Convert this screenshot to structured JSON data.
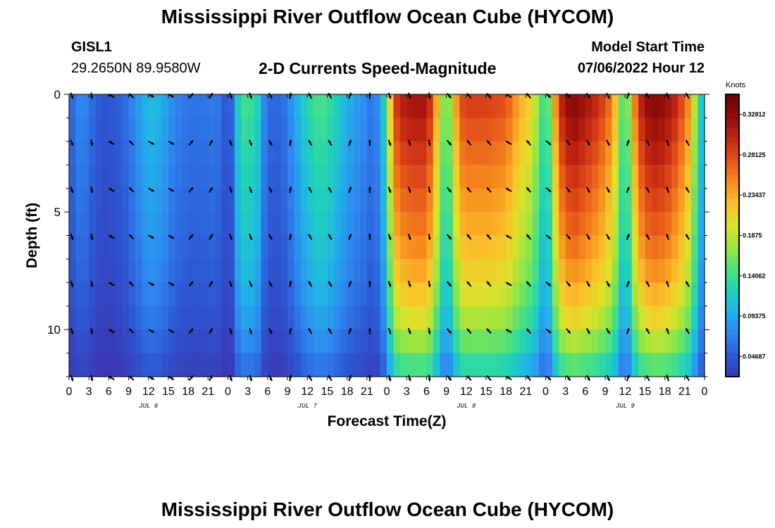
{
  "header": {
    "title": "Mississippi River Outflow Ocean Cube (HYCOM)",
    "station_id": "GISL1",
    "station_coords": "29.2650N  89.9580W",
    "subtitle": "2-D Currents Speed-Magnitude",
    "model_start_label": "Model Start Time",
    "model_start_value": "07/06/2022 Hour 12"
  },
  "footer": {
    "title": "Mississippi River Outflow Ocean Cube (HYCOM)"
  },
  "chart_data": {
    "type": "heatmap",
    "xlabel": "Forecast Time(Z)",
    "ylabel": "Depth (ft)",
    "x_hours": [
      0,
      96
    ],
    "x_tick_labels": [
      "0",
      "3",
      "6",
      "9",
      "12",
      "15",
      "18",
      "21",
      "0",
      "3",
      "6",
      "9",
      "12",
      "15",
      "18",
      "21",
      "0",
      "3",
      "6",
      "9",
      "12",
      "15",
      "18",
      "21",
      "0",
      "3",
      "6",
      "9",
      "12",
      "15",
      "18",
      "21",
      "0"
    ],
    "day_labels": [
      {
        "label": "JUL 6",
        "hour": 12
      },
      {
        "label": "JUL 7",
        "hour": 36
      },
      {
        "label": "JUL 8",
        "hour": 60
      },
      {
        "label": "JUL 9",
        "hour": 84
      }
    ],
    "y_depth_ft": [
      0,
      12
    ],
    "y_tick_labels": [
      {
        "depth": 0,
        "label": "0"
      },
      {
        "depth": 5,
        "label": "5"
      },
      {
        "depth": 10,
        "label": "10"
      }
    ],
    "colorbar": {
      "unit": "Knots",
      "min": 0.0234,
      "max": 0.3516,
      "tick_values": [
        0.04687,
        0.09375,
        0.14062,
        0.1875,
        0.23437,
        0.28125,
        0.32812
      ],
      "tick_labels": [
        "0.04687",
        "0.09375",
        "0.14062",
        "0.1875",
        "0.23437",
        "0.28125",
        "0.32812"
      ],
      "colormap": [
        "#3a38b4",
        "#2c5bd6",
        "#2f86f0",
        "#21b2e8",
        "#1fd3b9",
        "#4fe27a",
        "#9ae640",
        "#dee22b",
        "#fbc02a",
        "#f68a1d",
        "#e4521a",
        "#c22412",
        "#8f0c08",
        "#6b0505"
      ]
    },
    "depth_layers": [
      0,
      1,
      2,
      3,
      4,
      5,
      6,
      7,
      8,
      9,
      10,
      11,
      12
    ],
    "time_speed_profile": [
      {
        "hour": 0,
        "speed": 0.05
      },
      {
        "hour": 1,
        "speed": 0.07
      },
      {
        "hour": 2,
        "speed": 0.08
      },
      {
        "hour": 3,
        "speed": 0.065
      },
      {
        "hour": 4,
        "speed": 0.055
      },
      {
        "hour": 5,
        "speed": 0.045
      },
      {
        "hour": 6,
        "speed": 0.045
      },
      {
        "hour": 8,
        "speed": 0.055
      },
      {
        "hour": 10,
        "speed": 0.08
      },
      {
        "hour": 12,
        "speed": 0.11
      },
      {
        "hour": 14,
        "speed": 0.1
      },
      {
        "hour": 16,
        "speed": 0.075
      },
      {
        "hour": 18,
        "speed": 0.065
      },
      {
        "hour": 20,
        "speed": 0.065
      },
      {
        "hour": 22,
        "speed": 0.07
      },
      {
        "hour": 23,
        "speed": 0.06
      },
      {
        "hour": 24,
        "speed": 0.04
      },
      {
        "hour": 25,
        "speed": 0.07
      },
      {
        "hour": 26,
        "speed": 0.17
      },
      {
        "hour": 27,
        "speed": 0.12
      },
      {
        "hour": 28,
        "speed": 0.16
      },
      {
        "hour": 29,
        "speed": 0.09
      },
      {
        "hour": 30,
        "speed": 0.06
      },
      {
        "hour": 32,
        "speed": 0.055
      },
      {
        "hour": 34,
        "speed": 0.09
      },
      {
        "hour": 36,
        "speed": 0.13
      },
      {
        "hour": 38,
        "speed": 0.15
      },
      {
        "hour": 40,
        "speed": 0.13
      },
      {
        "hour": 42,
        "speed": 0.1
      },
      {
        "hour": 44,
        "speed": 0.085
      },
      {
        "hour": 46,
        "speed": 0.065
      },
      {
        "hour": 47,
        "speed": 0.09
      },
      {
        "hour": 48,
        "speed": 0.15
      },
      {
        "hour": 49,
        "speed": 0.28
      },
      {
        "hour": 50,
        "speed": 0.31
      },
      {
        "hour": 52,
        "speed": 0.32
      },
      {
        "hour": 54,
        "speed": 0.32
      },
      {
        "hour": 55,
        "speed": 0.28
      },
      {
        "hour": 56,
        "speed": 0.2
      },
      {
        "hour": 57,
        "speed": 0.14
      },
      {
        "hour": 58,
        "speed": 0.21
      },
      {
        "hour": 59,
        "speed": 0.28
      },
      {
        "hour": 60,
        "speed": 0.29
      },
      {
        "hour": 63,
        "speed": 0.29
      },
      {
        "hour": 66,
        "speed": 0.28
      },
      {
        "hour": 68,
        "speed": 0.24
      },
      {
        "hour": 70,
        "speed": 0.21
      },
      {
        "hour": 71,
        "speed": 0.17
      },
      {
        "hour": 72,
        "speed": 0.12
      },
      {
        "hour": 73,
        "speed": 0.2
      },
      {
        "hour": 74,
        "speed": 0.3
      },
      {
        "hour": 76,
        "speed": 0.34
      },
      {
        "hour": 78,
        "speed": 0.32
      },
      {
        "hour": 80,
        "speed": 0.3
      },
      {
        "hour": 82,
        "speed": 0.26
      },
      {
        "hour": 83,
        "speed": 0.2
      },
      {
        "hour": 84,
        "speed": 0.12
      },
      {
        "hour": 85,
        "speed": 0.22
      },
      {
        "hour": 86,
        "speed": 0.3
      },
      {
        "hour": 88,
        "speed": 0.34
      },
      {
        "hour": 90,
        "speed": 0.33
      },
      {
        "hour": 92,
        "speed": 0.3
      },
      {
        "hour": 94,
        "speed": 0.24
      },
      {
        "hour": 95,
        "speed": 0.14
      },
      {
        "hour": 96,
        "speed": 0.1
      }
    ],
    "depth_speed_factor": [
      {
        "depth": 0,
        "factor": 1.0
      },
      {
        "depth": 2,
        "factor": 0.93
      },
      {
        "depth": 4,
        "factor": 0.86
      },
      {
        "depth": 6,
        "factor": 0.8
      },
      {
        "depth": 8,
        "factor": 0.72
      },
      {
        "depth": 10,
        "factor": 0.6
      },
      {
        "depth": 11,
        "factor": 0.5
      },
      {
        "depth": 12,
        "factor": 0.42
      }
    ],
    "vector_depths": [
      0,
      2,
      4,
      6,
      8,
      10,
      12
    ],
    "vectors_by_time": [
      {
        "hour": 0,
        "dir_deg": 160
      },
      {
        "hour": 3,
        "dir_deg": 170
      },
      {
        "hour": 6,
        "dir_deg": 300
      },
      {
        "hour": 9,
        "dir_deg": 315
      },
      {
        "hour": 12,
        "dir_deg": 120
      },
      {
        "hour": 15,
        "dir_deg": 120
      },
      {
        "hour": 18,
        "dir_deg": 40
      },
      {
        "hour": 21,
        "dir_deg": 30
      },
      {
        "hour": 24,
        "dir_deg": 160
      },
      {
        "hour": 27,
        "dir_deg": 160
      },
      {
        "hour": 30,
        "dir_deg": 150
      },
      {
        "hour": 33,
        "dir_deg": 10
      },
      {
        "hour": 36,
        "dir_deg": 330
      },
      {
        "hour": 39,
        "dir_deg": 330
      },
      {
        "hour": 42,
        "dir_deg": 20
      },
      {
        "hour": 45,
        "dir_deg": 0
      },
      {
        "hour": 48,
        "dir_deg": 160
      },
      {
        "hour": 51,
        "dir_deg": 160
      },
      {
        "hour": 54,
        "dir_deg": 170
      },
      {
        "hour": 57,
        "dir_deg": 140
      },
      {
        "hour": 60,
        "dir_deg": 320
      },
      {
        "hour": 63,
        "dir_deg": 320
      },
      {
        "hour": 66,
        "dir_deg": 300
      },
      {
        "hour": 69,
        "dir_deg": 320
      },
      {
        "hour": 72,
        "dir_deg": 130
      },
      {
        "hour": 75,
        "dir_deg": 140
      },
      {
        "hour": 78,
        "dir_deg": 150
      },
      {
        "hour": 81,
        "dir_deg": 150
      },
      {
        "hour": 84,
        "dir_deg": 20
      },
      {
        "hour": 87,
        "dir_deg": 330
      },
      {
        "hour": 90,
        "dir_deg": 340
      },
      {
        "hour": 93,
        "dir_deg": 330
      }
    ]
  }
}
